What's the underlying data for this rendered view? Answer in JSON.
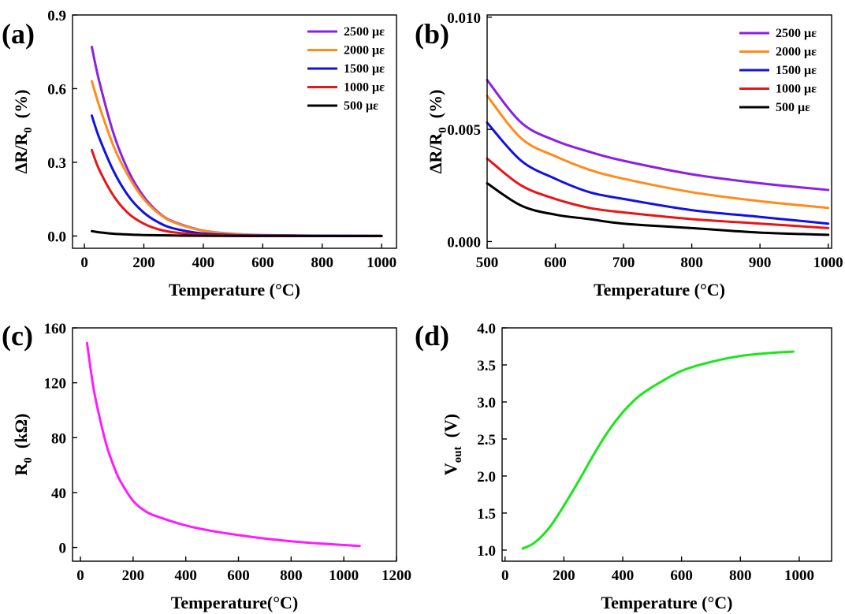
{
  "chart_data": [
    {
      "panel": "(a)",
      "type": "line",
      "xlabel": "Temperature (°C)",
      "ylabel": "ΔR/R0 (%)",
      "ylabel_parts": {
        "main": "ΔR/R",
        "sub": "0",
        "unit": "(%)"
      },
      "xlim": [
        -40,
        1050
      ],
      "ylim": [
        -0.05,
        0.9
      ],
      "xticks": [
        0,
        200,
        400,
        600,
        800,
        1000
      ],
      "yticks": [
        0.0,
        0.3,
        0.6,
        0.9
      ],
      "ytick_labels": [
        "0.0",
        "0.3",
        "0.6",
        "0.9"
      ],
      "legend_position": "top-right",
      "series": [
        {
          "name": "2500 με",
          "color": "#8B1FE8",
          "x": [
            25,
            50,
            100,
            150,
            200,
            250,
            300,
            400,
            500,
            600,
            800,
            1000
          ],
          "y": [
            0.77,
            0.63,
            0.41,
            0.26,
            0.16,
            0.095,
            0.058,
            0.022,
            0.009,
            0.004,
            0.001,
            0.0
          ]
        },
        {
          "name": "2000 με",
          "color": "#FF8C1A",
          "x": [
            25,
            50,
            100,
            150,
            200,
            250,
            300,
            400,
            500,
            600,
            800,
            1000
          ],
          "y": [
            0.63,
            0.53,
            0.36,
            0.24,
            0.15,
            0.092,
            0.056,
            0.021,
            0.008,
            0.003,
            0.001,
            0.0
          ]
        },
        {
          "name": "1500 με",
          "color": "#1010E8",
          "x": [
            25,
            50,
            100,
            150,
            200,
            250,
            300,
            400,
            500,
            600,
            800,
            1000
          ],
          "y": [
            0.49,
            0.4,
            0.26,
            0.16,
            0.095,
            0.055,
            0.031,
            0.01,
            0.004,
            0.002,
            0.001,
            0.0
          ]
        },
        {
          "name": "1000 με",
          "color": "#E81515",
          "x": [
            25,
            50,
            100,
            150,
            200,
            250,
            300,
            400,
            500,
            600,
            800,
            1000
          ],
          "y": [
            0.35,
            0.27,
            0.16,
            0.09,
            0.05,
            0.027,
            0.015,
            0.005,
            0.002,
            0.001,
            0.0,
            0.0
          ]
        },
        {
          "name": "500 με",
          "color": "#000000",
          "x": [
            25,
            50,
            100,
            200,
            300,
            400,
            600,
            800,
            1000
          ],
          "y": [
            0.02,
            0.015,
            0.009,
            0.004,
            0.002,
            0.001,
            0.0,
            0.0,
            0.0
          ]
        }
      ]
    },
    {
      "panel": "(b)",
      "type": "line",
      "xlabel": "Temperature (°C)",
      "ylabel": "ΔR/R0 (%)",
      "ylabel_parts": {
        "main": "ΔR/R",
        "sub": "0",
        "unit": "(%)"
      },
      "xlim": [
        500,
        1005
      ],
      "ylim": [
        -0.0003,
        0.0101
      ],
      "xticks": [
        500,
        600,
        700,
        800,
        900,
        1000
      ],
      "yticks": [
        0.0,
        0.005,
        0.01
      ],
      "ytick_labels": [
        "0.000",
        "0.005",
        "0.010"
      ],
      "legend_position": "top-right",
      "series": [
        {
          "name": "2500 με",
          "color": "#8B1FE8",
          "x": [
            500,
            550,
            600,
            650,
            700,
            800,
            900,
            1000
          ],
          "y": [
            0.0072,
            0.0053,
            0.0045,
            0.004,
            0.0036,
            0.003,
            0.0026,
            0.0023
          ]
        },
        {
          "name": "2000 με",
          "color": "#FF8C1A",
          "x": [
            500,
            550,
            600,
            650,
            700,
            800,
            900,
            1000
          ],
          "y": [
            0.0065,
            0.0046,
            0.0038,
            0.0032,
            0.0028,
            0.0022,
            0.0018,
            0.0015
          ]
        },
        {
          "name": "1500 με",
          "color": "#1010E8",
          "x": [
            500,
            550,
            600,
            650,
            700,
            800,
            900,
            1000
          ],
          "y": [
            0.0053,
            0.0036,
            0.0028,
            0.0022,
            0.0019,
            0.0014,
            0.0011,
            0.0008
          ]
        },
        {
          "name": "1000 με",
          "color": "#E81515",
          "x": [
            500,
            550,
            600,
            650,
            700,
            800,
            900,
            1000
          ],
          "y": [
            0.0037,
            0.0025,
            0.0019,
            0.0015,
            0.0013,
            0.001,
            0.0008,
            0.0006
          ]
        },
        {
          "name": "500 με",
          "color": "#000000",
          "x": [
            500,
            550,
            600,
            650,
            700,
            800,
            900,
            1000
          ],
          "y": [
            0.0026,
            0.0016,
            0.0012,
            0.001,
            0.0008,
            0.0006,
            0.0004,
            0.0003
          ]
        }
      ]
    },
    {
      "panel": "(c)",
      "type": "line",
      "xlabel": "Temperature(°C)",
      "ylabel": "R0 (kΩ)",
      "ylabel_parts": {
        "main": "R",
        "sub": "0",
        "unit": "(kΩ)"
      },
      "xlim": [
        -30,
        1200
      ],
      "ylim": [
        -10,
        160
      ],
      "xticks": [
        0,
        200,
        400,
        600,
        800,
        1000,
        1200
      ],
      "yticks": [
        0,
        40,
        80,
        120,
        160
      ],
      "ytick_labels": [
        "0",
        "40",
        "80",
        "120",
        "160"
      ],
      "series": [
        {
          "color": "#FF1AFF",
          "x": [
            25,
            50,
            75,
            100,
            125,
            150,
            200,
            250,
            300,
            400,
            500,
            600,
            700,
            800,
            900,
            1000,
            1060
          ],
          "y": [
            149,
            116,
            93,
            74,
            60,
            49,
            34,
            26,
            22,
            16,
            12,
            9,
            6.5,
            4.5,
            3,
            1.8,
            1
          ]
        }
      ]
    },
    {
      "panel": "(d)",
      "type": "line",
      "xlabel": "Temperature (°C)",
      "ylabel": "Vout (V)",
      "ylabel_parts": {
        "main": "V",
        "sub": "out",
        "unit": "(V)"
      },
      "xlim": [
        -10,
        1110
      ],
      "ylim": [
        0.85,
        4.0
      ],
      "xticks": [
        0,
        200,
        400,
        600,
        800,
        1000
      ],
      "yticks": [
        1.0,
        1.5,
        2.0,
        2.5,
        3.0,
        3.5,
        4.0
      ],
      "ytick_labels": [
        "1.0",
        "1.5",
        "2.0",
        "2.5",
        "3.0",
        "3.5",
        "4.0"
      ],
      "series": [
        {
          "color": "#19E619",
          "x": [
            60,
            100,
            150,
            200,
            250,
            300,
            350,
            400,
            450,
            500,
            600,
            700,
            800,
            900,
            980
          ],
          "y": [
            1.02,
            1.1,
            1.3,
            1.6,
            1.93,
            2.28,
            2.6,
            2.86,
            3.06,
            3.2,
            3.42,
            3.54,
            3.62,
            3.66,
            3.68
          ]
        }
      ]
    }
  ]
}
